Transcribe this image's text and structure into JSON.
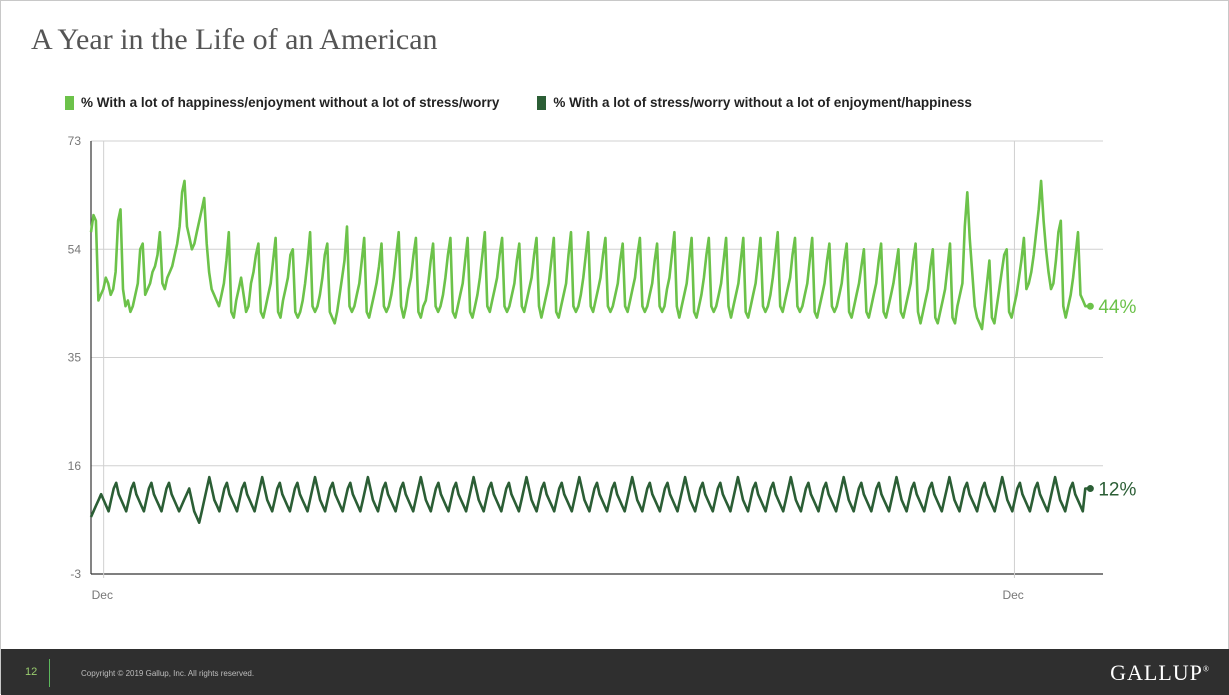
{
  "slide": {
    "title": "A Year in the Life of an American",
    "page_number": "12",
    "copyright": "Copyright © 2019 Gallup, Inc. All rights reserved.",
    "logo": "GALLUP",
    "logo_mark": "®"
  },
  "chart_data": {
    "type": "line",
    "title": "",
    "xlabel": "",
    "ylabel": "",
    "ylim": [
      -3,
      73
    ],
    "yticks": [
      73,
      54,
      35,
      16,
      -3
    ],
    "xtick_labels": [
      "Dec",
      "Dec"
    ],
    "x_range_days": [
      0,
      400
    ],
    "xtick_days": [
      5,
      365
    ],
    "grid": true,
    "legend_position": "top-left",
    "colors": {
      "happiness": "#6cc24a",
      "stress": "#2b5e35"
    },
    "series": [
      {
        "key": "happiness",
        "name": "% With a lot of happiness/enjoyment without a lot of stress/worry",
        "end_label": "44%",
        "values": [
          57,
          60,
          59,
          45,
          46,
          47,
          49,
          48,
          46,
          47,
          50,
          59,
          61,
          47,
          44,
          45,
          43,
          44,
          46,
          48,
          54,
          55,
          46,
          47,
          48,
          50,
          51,
          53,
          57,
          48,
          47,
          49,
          50,
          51,
          53,
          55,
          58,
          64,
          66,
          58,
          56,
          54,
          55,
          57,
          59,
          61,
          63,
          55,
          50,
          47,
          46,
          45,
          44,
          46,
          48,
          52,
          57,
          43,
          42,
          45,
          47,
          49,
          46,
          43,
          44,
          48,
          50,
          53,
          55,
          43,
          42,
          44,
          46,
          48,
          52,
          56,
          43,
          42,
          45,
          47,
          49,
          53,
          54,
          43,
          42,
          43,
          45,
          48,
          52,
          57,
          44,
          43,
          44,
          46,
          49,
          53,
          55,
          43,
          42,
          41,
          43,
          46,
          49,
          52,
          58,
          44,
          43,
          44,
          46,
          48,
          52,
          56,
          43,
          42,
          44,
          46,
          48,
          51,
          55,
          44,
          43,
          44,
          46,
          49,
          53,
          57,
          44,
          42,
          44,
          47,
          49,
          53,
          56,
          43,
          42,
          44,
          45,
          48,
          52,
          55,
          44,
          43,
          44,
          46,
          49,
          53,
          56,
          43,
          42,
          44,
          46,
          48,
          52,
          56,
          43,
          42,
          44,
          46,
          49,
          53,
          57,
          44,
          43,
          45,
          47,
          49,
          53,
          56,
          44,
          43,
          44,
          46,
          48,
          52,
          55,
          44,
          43,
          45,
          47,
          49,
          53,
          56,
          44,
          42,
          44,
          46,
          48,
          52,
          56,
          43,
          42,
          44,
          46,
          48,
          53,
          57,
          44,
          43,
          44,
          46,
          49,
          53,
          57,
          44,
          43,
          45,
          47,
          49,
          53,
          56,
          44,
          43,
          44,
          46,
          48,
          52,
          55,
          44,
          43,
          45,
          47,
          49,
          53,
          56,
          44,
          43,
          44,
          46,
          48,
          52,
          55,
          44,
          43,
          44,
          47,
          49,
          53,
          57,
          44,
          42,
          44,
          46,
          48,
          52,
          56,
          43,
          42,
          44,
          46,
          49,
          53,
          56,
          44,
          43,
          44,
          46,
          48,
          52,
          56,
          44,
          42,
          44,
          46,
          48,
          52,
          56,
          43,
          42,
          44,
          46,
          48,
          52,
          56,
          44,
          43,
          44,
          46,
          49,
          53,
          57,
          44,
          43,
          45,
          47,
          49,
          53,
          56,
          44,
          43,
          44,
          46,
          48,
          52,
          56,
          43,
          42,
          44,
          46,
          48,
          52,
          55,
          44,
          43,
          44,
          46,
          48,
          52,
          55,
          43,
          42,
          44,
          46,
          48,
          51,
          54,
          43,
          42,
          44,
          46,
          48,
          52,
          55,
          43,
          42,
          44,
          46,
          48,
          51,
          54,
          43,
          42,
          44,
          46,
          48,
          52,
          55,
          43,
          41,
          43,
          45,
          47,
          51,
          54,
          42,
          41,
          43,
          45,
          47,
          51,
          55,
          42,
          41,
          44,
          46,
          48,
          58,
          64,
          56,
          50,
          44,
          42,
          41,
          40,
          44,
          48,
          52,
          42,
          41,
          44,
          47,
          50,
          53,
          54,
          43,
          42,
          44,
          46,
          49,
          52,
          56,
          47,
          48,
          50,
          53,
          57,
          61,
          66,
          59,
          54,
          50,
          47,
          48,
          52,
          57,
          59,
          44,
          42,
          44,
          46,
          49,
          53,
          57,
          46,
          45,
          44,
          44,
          44
        ]
      },
      {
        "key": "stress",
        "name": "% With a lot of stress/worry without a lot of enjoyment/happiness",
        "end_label": "12%",
        "values": [
          7,
          8,
          9,
          10,
          11,
          10,
          9,
          8,
          10,
          12,
          13,
          11,
          10,
          9,
          8,
          10,
          12,
          13,
          11,
          10,
          9,
          8,
          10,
          12,
          13,
          11,
          10,
          9,
          8,
          10,
          12,
          13,
          11,
          10,
          9,
          8,
          9,
          10,
          11,
          12,
          10,
          8,
          7,
          6,
          8,
          10,
          12,
          14,
          12,
          10,
          9,
          8,
          10,
          12,
          13,
          11,
          10,
          9,
          8,
          10,
          12,
          13,
          11,
          10,
          9,
          8,
          10,
          12,
          14,
          12,
          10,
          9,
          8,
          10,
          12,
          13,
          11,
          10,
          9,
          8,
          10,
          12,
          13,
          11,
          10,
          9,
          8,
          10,
          12,
          14,
          12,
          10,
          9,
          8,
          10,
          12,
          13,
          11,
          10,
          9,
          8,
          10,
          12,
          13,
          11,
          10,
          9,
          8,
          10,
          12,
          14,
          12,
          10,
          9,
          8,
          10,
          12,
          13,
          11,
          10,
          9,
          8,
          10,
          12,
          13,
          11,
          10,
          9,
          8,
          10,
          12,
          14,
          12,
          10,
          9,
          8,
          10,
          12,
          13,
          11,
          10,
          9,
          8,
          10,
          12,
          13,
          11,
          10,
          9,
          8,
          10,
          12,
          14,
          12,
          10,
          9,
          8,
          10,
          12,
          13,
          11,
          10,
          9,
          8,
          10,
          12,
          13,
          11,
          10,
          9,
          8,
          10,
          12,
          14,
          12,
          10,
          9,
          8,
          10,
          12,
          13,
          11,
          10,
          9,
          8,
          10,
          12,
          13,
          11,
          10,
          9,
          8,
          10,
          12,
          14,
          12,
          10,
          9,
          8,
          10,
          12,
          13,
          11,
          10,
          9,
          8,
          10,
          12,
          13,
          11,
          10,
          9,
          8,
          10,
          12,
          14,
          12,
          10,
          9,
          8,
          10,
          12,
          13,
          11,
          10,
          9,
          8,
          10,
          12,
          13,
          11,
          10,
          9,
          8,
          10,
          12,
          14,
          12,
          10,
          9,
          8,
          10,
          12,
          13,
          11,
          10,
          9,
          8,
          10,
          12,
          13,
          11,
          10,
          9,
          8,
          10,
          12,
          14,
          12,
          10,
          9,
          8,
          10,
          12,
          13,
          11,
          10,
          9,
          8,
          10,
          12,
          13,
          11,
          10,
          9,
          8,
          10,
          12,
          14,
          12,
          10,
          9,
          8,
          10,
          12,
          13,
          11,
          10,
          9,
          8,
          10,
          12,
          13,
          11,
          10,
          9,
          8,
          10,
          12,
          14,
          12,
          10,
          9,
          8,
          10,
          12,
          13,
          11,
          10,
          9,
          8,
          10,
          12,
          13,
          11,
          10,
          9,
          8,
          10,
          12,
          14,
          12,
          10,
          9,
          8,
          10,
          12,
          13,
          11,
          10,
          9,
          8,
          10,
          12,
          13,
          11,
          10,
          9,
          8,
          10,
          12,
          14,
          12,
          10,
          9,
          8,
          10,
          12,
          13,
          11,
          10,
          9,
          8,
          10,
          12,
          13,
          11,
          10,
          9,
          8,
          10,
          12,
          14,
          12,
          10,
          9,
          8,
          10,
          12,
          13,
          11,
          10,
          9,
          8,
          10,
          12,
          13,
          11,
          10,
          9,
          8,
          10,
          12,
          14,
          12,
          10,
          9,
          8,
          10,
          12,
          13,
          11,
          10,
          9,
          8,
          12,
          12,
          12
        ]
      }
    ]
  }
}
